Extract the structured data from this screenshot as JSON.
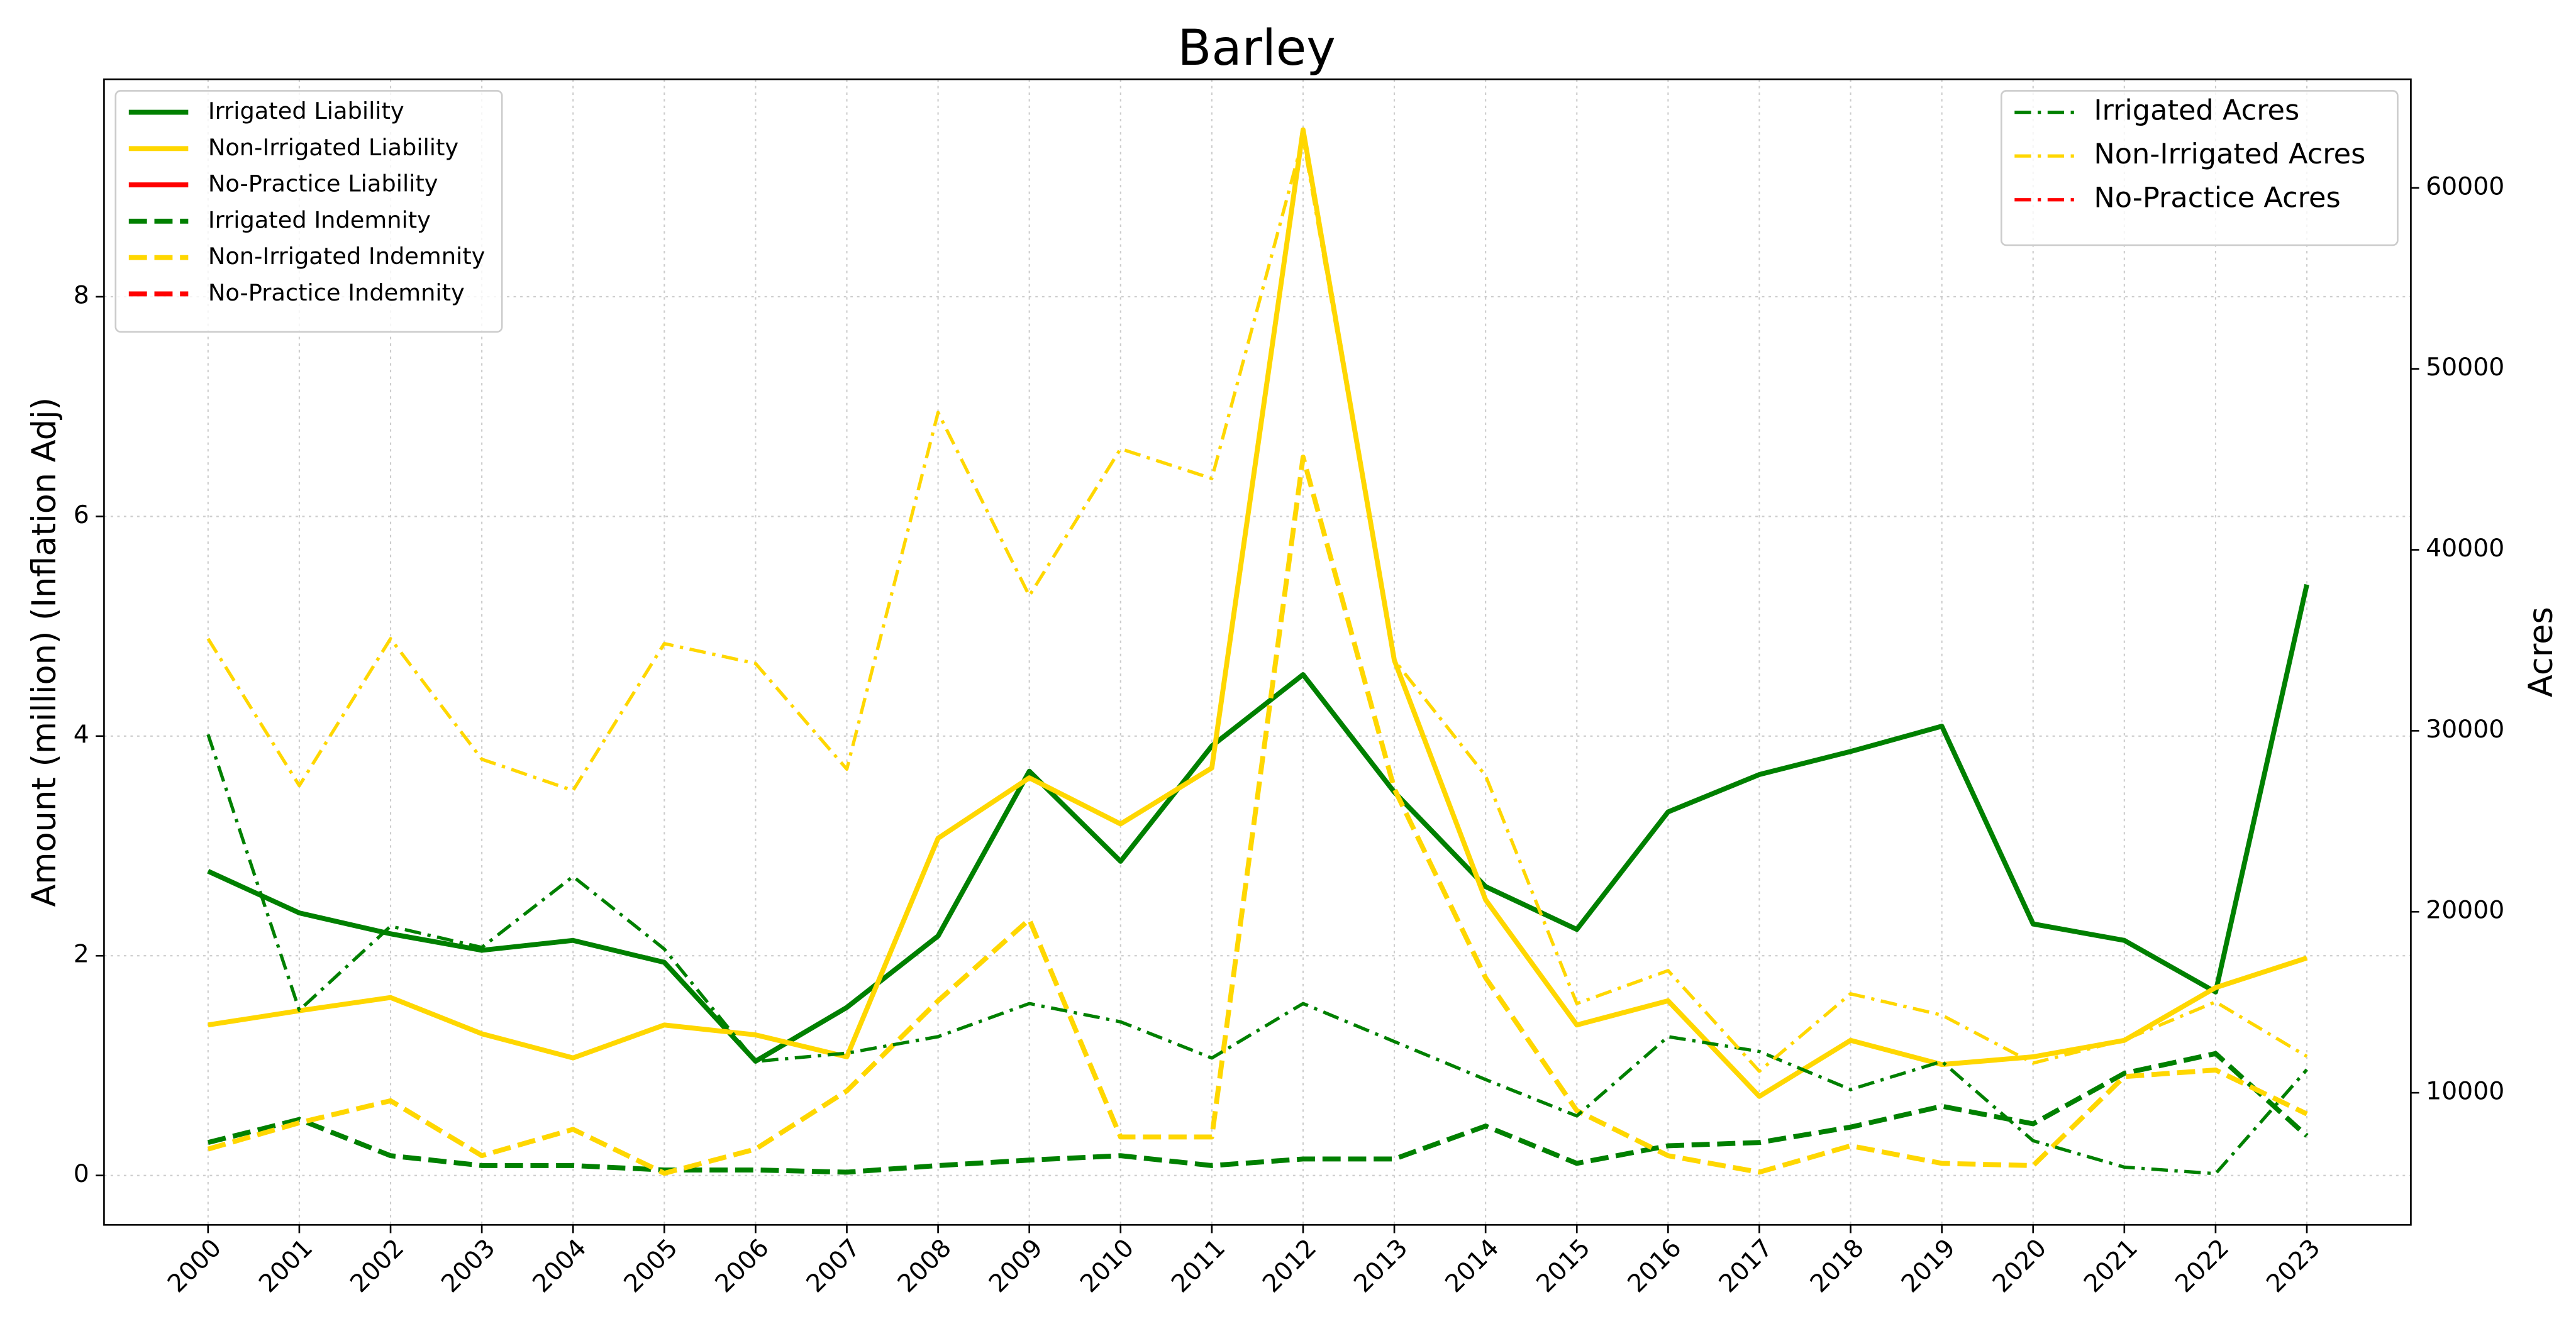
{
  "chart_data": {
    "type": "line",
    "title": "Barley",
    "ylabel": "Amount (million) (Inflation Adj)",
    "y2label": "Acres",
    "x": [
      2000,
      2001,
      2002,
      2003,
      2004,
      2005,
      2006,
      2007,
      2008,
      2009,
      2010,
      2011,
      2012,
      2013,
      2014,
      2015,
      2016,
      2017,
      2018,
      2019,
      2020,
      2021,
      2022,
      2023
    ],
    "xlim": [
      1998.86,
      2024.14
    ],
    "xticks": [
      2000,
      2001,
      2002,
      2003,
      2004,
      2005,
      2006,
      2007,
      2008,
      2009,
      2010,
      2011,
      2012,
      2013,
      2014,
      2015,
      2016,
      2017,
      2018,
      2019,
      2020,
      2021,
      2022,
      2023
    ],
    "ylim": [
      -0.45,
      9.98
    ],
    "yticks": [
      0,
      2,
      4,
      6,
      8
    ],
    "y2lim": [
      2700,
      66000
    ],
    "y2ticks": [
      10000,
      20000,
      30000,
      40000,
      50000,
      60000
    ],
    "grid": true,
    "legend": "upper left",
    "legend2": "upper right",
    "series": [
      {
        "name": "Irrigated Liability",
        "color": "#008000",
        "linestyle": "solid",
        "axis": "y",
        "values": [
          2.77,
          2.39,
          2.2,
          2.05,
          2.14,
          1.94,
          1.04,
          1.53,
          2.18,
          3.68,
          2.86,
          3.91,
          4.56,
          3.49,
          2.63,
          2.24,
          3.31,
          3.65,
          3.86,
          4.09,
          2.29,
          2.14,
          1.67,
          5.38
        ]
      },
      {
        "name": "Non-Irrigated Liability",
        "color": "#ffd700",
        "linestyle": "solid",
        "axis": "y",
        "values": [
          1.37,
          1.5,
          1.62,
          1.29,
          1.07,
          1.37,
          1.28,
          1.08,
          3.07,
          3.62,
          3.2,
          3.71,
          9.52,
          4.69,
          2.51,
          1.37,
          1.59,
          0.72,
          1.23,
          1.01,
          1.08,
          1.23,
          1.71,
          1.98
        ]
      },
      {
        "name": "No-Practice Liability",
        "color": "#ff0000",
        "linestyle": "solid",
        "axis": "y",
        "values": [
          null,
          null,
          null,
          null,
          null,
          null,
          null,
          null,
          null,
          null,
          null,
          null,
          null,
          null,
          null,
          null,
          null,
          null,
          null,
          null,
          null,
          null,
          null,
          null
        ]
      },
      {
        "name": "Irrigated Indemnity",
        "color": "#008000",
        "linestyle": "dashed",
        "axis": "y",
        "values": [
          0.3,
          0.51,
          0.18,
          0.09,
          0.09,
          0.05,
          0.05,
          0.03,
          0.09,
          0.14,
          0.18,
          0.09,
          0.15,
          0.15,
          0.45,
          0.11,
          0.27,
          0.3,
          0.44,
          0.63,
          0.47,
          0.93,
          1.11,
          0.36
        ]
      },
      {
        "name": "Non-Irrigated Indemnity",
        "color": "#ffd700",
        "linestyle": "dashed",
        "axis": "y",
        "values": [
          0.24,
          0.48,
          0.68,
          0.18,
          0.42,
          0.02,
          0.24,
          0.77,
          1.59,
          2.33,
          0.35,
          0.35,
          6.54,
          3.52,
          1.8,
          0.59,
          0.18,
          0.03,
          0.27,
          0.11,
          0.09,
          0.9,
          0.96,
          0.56
        ]
      },
      {
        "name": "No-Practice Indemnity",
        "color": "#ff0000",
        "linestyle": "dashed",
        "axis": "y",
        "values": [
          null,
          null,
          null,
          null,
          null,
          null,
          null,
          null,
          null,
          null,
          null,
          null,
          null,
          null,
          null,
          null,
          null,
          null,
          null,
          null,
          null,
          null,
          null,
          null
        ]
      },
      {
        "name": "Irrigated Acres",
        "color": "#008000",
        "linestyle": "dashdot",
        "axis": "y2",
        "values": [
          29800,
          14560,
          19200,
          18030,
          21950,
          17940,
          11730,
          12190,
          13100,
          14930,
          13920,
          11920,
          14930,
          12830,
          10730,
          8720,
          13100,
          12280,
          10180,
          11730,
          7350,
          5890,
          5530,
          11280
        ]
      },
      {
        "name": "Non-Irrigated Acres",
        "color": "#ffd700",
        "linestyle": "dashdot",
        "axis": "y2",
        "values": [
          35090,
          26970,
          35090,
          28430,
          26700,
          34820,
          33720,
          27880,
          47590,
          37460,
          45580,
          43940,
          62740,
          33900,
          27520,
          14930,
          16750,
          11190,
          15470,
          14290,
          11640,
          12920,
          15020,
          12010
        ]
      },
      {
        "name": "No-Practice Acres",
        "color": "#ff0000",
        "linestyle": "dashdot",
        "axis": "y2",
        "values": [
          null,
          null,
          null,
          null,
          null,
          null,
          null,
          null,
          null,
          null,
          null,
          null,
          null,
          null,
          null,
          null,
          null,
          null,
          null,
          null,
          null,
          null,
          null,
          null
        ]
      }
    ]
  }
}
